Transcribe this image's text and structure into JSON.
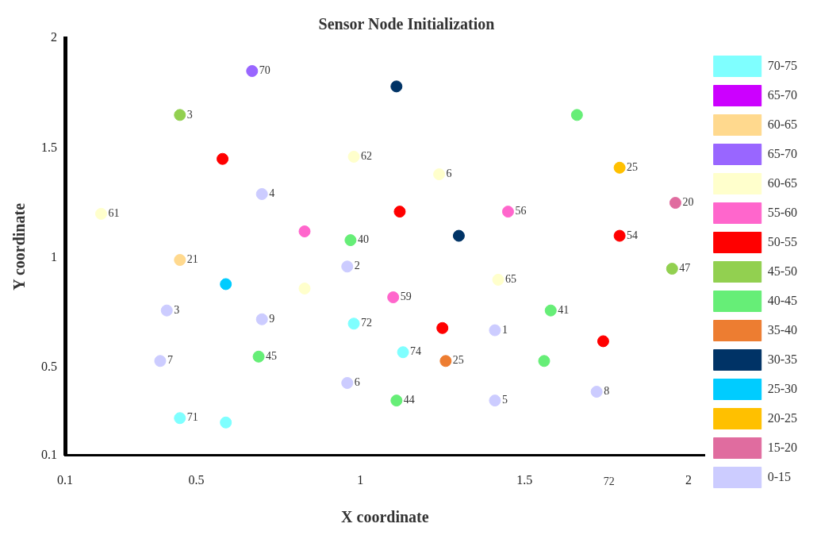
{
  "chart_data": {
    "type": "scatter",
    "title": "Sensor Node Initialization",
    "xlabel": "X coordinate",
    "ylabel": "Y coordinate",
    "xlim": [
      0.1,
      2.05
    ],
    "ylim": [
      0.1,
      2
    ],
    "xticks": [
      0.1,
      0.5,
      1,
      1.5,
      2
    ],
    "yticks": [
      0.1,
      0.5,
      1,
      1.5,
      2
    ],
    "grid": false,
    "legend": "right",
    "marker": "circle",
    "series": [
      {
        "name": "70-75",
        "color": "#7fffff",
        "x": [
          0.98,
          1.13,
          0.45,
          0.59
        ],
        "values": [
          0.7,
          0.57,
          0.27,
          0.25
        ]
      },
      {
        "name": "65-70",
        "color": "#cc00ff"
      },
      {
        "name": "60-65",
        "color": "#ffd98e",
        "x": [
          0.45
        ],
        "values": [
          0.99
        ]
      },
      {
        "name": "65-70",
        "color": "#9966ff",
        "x": [
          0.67
        ],
        "values": [
          1.85
        ]
      },
      {
        "name": "60-65",
        "color": "#ffffcc",
        "x": [
          0.98,
          1.24,
          0.21,
          0.83,
          1.42
        ],
        "values": [
          1.46,
          1.38,
          1.2,
          0.86,
          0.9
        ]
      },
      {
        "name": "55-60",
        "color": "#ff66cc",
        "x": [
          1.45,
          0.83,
          1.1
        ],
        "values": [
          1.21,
          1.12,
          0.82
        ]
      },
      {
        "name": "50-55",
        "color": "#ff0000",
        "x": [
          0.58,
          1.12,
          1.79,
          1.25,
          1.74
        ],
        "values": [
          1.45,
          1.21,
          1.1,
          0.68,
          0.62
        ]
      },
      {
        "name": "45-50",
        "color": "#92d050",
        "x": [
          0.45,
          1.95
        ],
        "values": [
          1.65,
          0.95
        ]
      },
      {
        "name": "40-45",
        "color": "#66ee77",
        "x": [
          1.66,
          0.97,
          1.58,
          0.69,
          1.56,
          1.11
        ],
        "values": [
          1.65,
          1.08,
          0.76,
          0.55,
          0.53,
          0.35
        ]
      },
      {
        "name": "35-40",
        "color": "#ed7d31",
        "x": [
          1.26
        ],
        "values": [
          0.53
        ]
      },
      {
        "name": "30-35",
        "color": "#003366",
        "x": [
          1.11,
          1.3
        ],
        "values": [
          1.78,
          1.1
        ]
      },
      {
        "name": "25-30",
        "color": "#00ccff",
        "x": [
          0.59
        ],
        "values": [
          0.88
        ]
      },
      {
        "name": "20-25",
        "color": "#ffc000",
        "x": [
          1.79
        ],
        "values": [
          1.41
        ]
      },
      {
        "name": "15-20",
        "color": "#e06c9f",
        "x": [
          1.96
        ],
        "values": [
          1.25
        ]
      },
      {
        "name": "0-15",
        "color": "#ccccff",
        "x": [
          0.7,
          0.96,
          0.41,
          0.7,
          1.41,
          0.39,
          0.96,
          1.72,
          1.41
        ],
        "values": [
          1.29,
          0.96,
          0.76,
          0.72,
          0.67,
          0.53,
          0.43,
          0.39,
          0.35
        ]
      }
    ],
    "annotations": [
      {
        "text": "70",
        "x": 0.67,
        "y": 1.85
      },
      {
        "text": "3",
        "x": 0.45,
        "y": 1.65
      },
      {
        "text": "62",
        "x": 0.98,
        "y": 1.46
      },
      {
        "text": "6",
        "x": 1.24,
        "y": 1.38
      },
      {
        "text": "25",
        "x": 1.79,
        "y": 1.41
      },
      {
        "text": "4",
        "x": 0.7,
        "y": 1.29
      },
      {
        "text": "61",
        "x": 0.21,
        "y": 1.2
      },
      {
        "text": "56",
        "x": 1.45,
        "y": 1.21
      },
      {
        "text": "20",
        "x": 1.96,
        "y": 1.25
      },
      {
        "text": "40",
        "x": 0.97,
        "y": 1.08
      },
      {
        "text": "54",
        "x": 1.79,
        "y": 1.1
      },
      {
        "text": "21",
        "x": 0.45,
        "y": 0.99
      },
      {
        "text": "2",
        "x": 0.96,
        "y": 0.96
      },
      {
        "text": "47",
        "x": 1.95,
        "y": 0.95
      },
      {
        "text": "65",
        "x": 1.42,
        "y": 0.9
      },
      {
        "text": "59",
        "x": 1.1,
        "y": 0.82
      },
      {
        "text": "3",
        "x": 0.41,
        "y": 0.76
      },
      {
        "text": "9",
        "x": 0.7,
        "y": 0.72
      },
      {
        "text": "72",
        "x": 0.98,
        "y": 0.7
      },
      {
        "text": "41",
        "x": 1.58,
        "y": 0.76
      },
      {
        "text": "1",
        "x": 1.41,
        "y": 0.67
      },
      {
        "text": "74",
        "x": 1.13,
        "y": 0.57
      },
      {
        "text": "45",
        "x": 0.69,
        "y": 0.55
      },
      {
        "text": "7",
        "x": 0.39,
        "y": 0.53
      },
      {
        "text": "25",
        "x": 1.26,
        "y": 0.53
      },
      {
        "text": "6",
        "x": 0.96,
        "y": 0.43
      },
      {
        "text": "8",
        "x": 1.72,
        "y": 0.39
      },
      {
        "text": "44",
        "x": 1.11,
        "y": 0.35
      },
      {
        "text": "5",
        "x": 1.41,
        "y": 0.35
      },
      {
        "text": "71",
        "x": 0.45,
        "y": 0.27
      },
      "72"
    ]
  }
}
